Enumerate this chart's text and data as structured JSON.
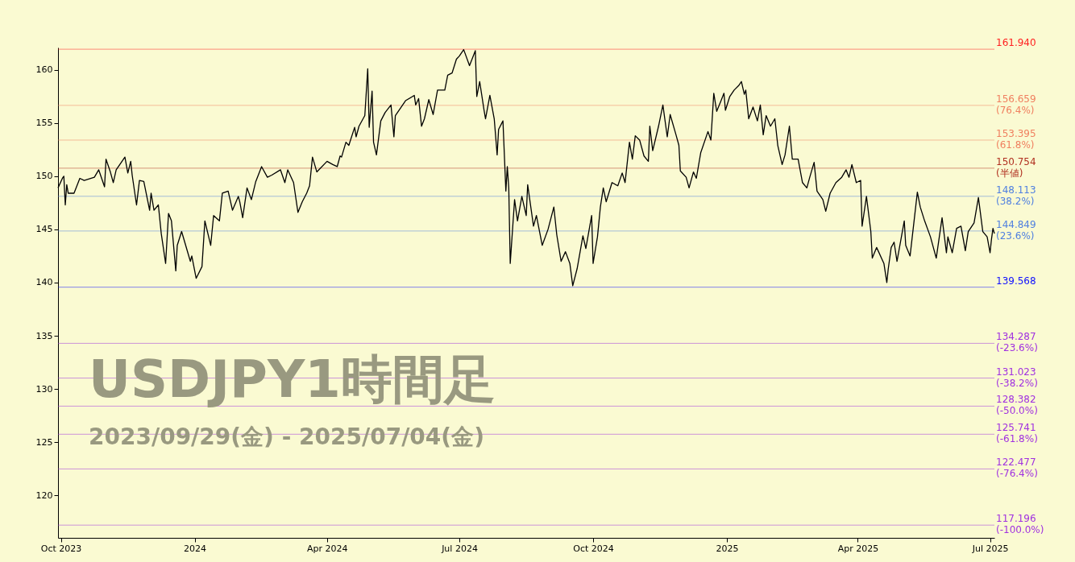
{
  "chart_data": {
    "type": "line",
    "title": "USDJPY1時間足",
    "subtitle": "2023/09/29(金) - 2025/07/04(金)",
    "color": "#000000",
    "x": [
      "2023-09-29",
      "2023-10-02",
      "2023-10-03",
      "2023-10-04",
      "2023-10-05",
      "2023-10-06",
      "2023-10-10",
      "2023-10-14",
      "2023-10-17",
      "2023-10-24",
      "2023-10-27",
      "2023-10-31",
      "2023-11-01",
      "2023-11-04",
      "2023-11-06",
      "2023-11-08",
      "2023-11-14",
      "2023-11-16",
      "2023-11-18",
      "2023-11-19",
      "2023-11-22",
      "2023-11-24",
      "2023-11-27",
      "2023-12-01",
      "2023-12-02",
      "2023-12-04",
      "2023-12-07",
      "2023-12-09",
      "2023-12-12",
      "2023-12-14",
      "2023-12-16",
      "2023-12-19",
      "2023-12-20",
      "2023-12-23",
      "2023-12-29",
      "2023-12-30",
      "2024-01-02",
      "2024-01-06",
      "2024-01-08",
      "2024-01-12",
      "2024-01-14",
      "2024-01-18",
      "2024-01-20",
      "2024-01-24",
      "2024-01-27",
      "2024-01-31",
      "2024-02-01",
      "2024-02-03",
      "2024-02-06",
      "2024-02-09",
      "2024-02-12",
      "2024-02-16",
      "2024-02-20",
      "2024-02-23",
      "2024-02-29",
      "2024-03-03",
      "2024-03-05",
      "2024-03-09",
      "2024-03-12",
      "2024-03-15",
      "2024-03-18",
      "2024-03-20",
      "2024-03-22",
      "2024-03-25",
      "2024-04-01",
      "2024-04-05",
      "2024-04-08",
      "2024-04-10",
      "2024-04-11",
      "2024-04-14",
      "2024-04-16",
      "2024-04-20",
      "2024-04-21",
      "2024-04-23",
      "2024-04-27",
      "2024-04-29",
      "2024-04-30",
      "2024-05-02",
      "2024-05-03",
      "2024-05-05",
      "2024-05-08",
      "2024-05-11",
      "2024-05-15",
      "2024-05-17",
      "2024-05-18",
      "2024-05-25",
      "2024-05-31",
      "2024-06-01",
      "2024-06-03",
      "2024-06-05",
      "2024-06-07",
      "2024-06-10",
      "2024-06-13",
      "2024-06-16",
      "2024-06-21",
      "2024-06-23",
      "2024-06-26",
      "2024-06-29",
      "2024-07-01",
      "2024-07-04",
      "2024-07-08",
      "2024-07-12",
      "2024-07-13",
      "2024-07-15",
      "2024-07-18",
      "2024-07-19",
      "2024-07-22",
      "2024-07-25",
      "2024-07-27",
      "2024-07-28",
      "2024-07-31",
      "2024-08-02",
      "2024-08-03",
      "2024-08-04",
      "2024-08-05",
      "2024-08-08",
      "2024-08-10",
      "2024-08-13",
      "2024-08-16",
      "2024-08-17",
      "2024-08-21",
      "2024-08-23",
      "2024-08-27",
      "2024-08-31",
      "2024-09-04",
      "2024-09-06",
      "2024-09-09",
      "2024-09-12",
      "2024-09-15",
      "2024-09-17",
      "2024-09-20",
      "2024-09-24",
      "2024-09-26",
      "2024-09-30",
      "2024-10-01",
      "2024-10-04",
      "2024-10-06",
      "2024-10-08",
      "2024-10-10",
      "2024-10-14",
      "2024-10-18",
      "2024-10-21",
      "2024-10-23",
      "2024-10-26",
      "2024-10-28",
      "2024-10-30",
      "2024-11-02",
      "2024-11-05",
      "2024-11-08",
      "2024-11-09",
      "2024-11-11",
      "2024-11-15",
      "2024-11-18",
      "2024-11-21",
      "2024-11-23",
      "2024-11-27",
      "2024-11-29",
      "2024-11-30",
      "2024-12-04",
      "2024-12-06",
      "2024-12-09",
      "2024-12-11",
      "2024-12-14",
      "2024-12-19",
      "2024-12-21",
      "2024-12-23",
      "2024-12-25",
      "2024-12-28",
      "2024-12-30",
      "2024-12-31",
      "2025-01-03",
      "2025-01-06",
      "2025-01-09",
      "2025-01-11",
      "2025-01-13",
      "2025-01-14",
      "2025-01-16",
      "2025-01-19",
      "2025-01-22",
      "2025-01-24",
      "2025-01-26",
      "2025-01-28",
      "2025-01-31",
      "2025-02-03",
      "2025-02-05",
      "2025-02-08",
      "2025-02-10",
      "2025-02-13",
      "2025-02-15",
      "2025-02-19",
      "2025-02-22",
      "2025-02-25",
      "2025-02-27",
      "2025-03-02",
      "2025-03-04",
      "2025-03-08",
      "2025-03-10",
      "2025-03-13",
      "2025-03-17",
      "2025-03-21",
      "2025-03-24",
      "2025-03-26",
      "2025-03-28",
      "2025-03-31",
      "2025-04-03",
      "2025-04-04",
      "2025-04-07",
      "2025-04-10",
      "2025-04-11",
      "2025-04-14",
      "2025-04-19",
      "2025-04-21",
      "2025-04-22",
      "2025-04-24",
      "2025-04-26",
      "2025-04-28",
      "2025-05-03",
      "2025-05-04",
      "2025-05-07",
      "2025-05-10",
      "2025-05-12",
      "2025-05-14",
      "2025-05-17",
      "2025-05-21",
      "2025-05-25",
      "2025-05-29",
      "2025-06-01",
      "2025-06-02",
      "2025-06-05",
      "2025-06-08",
      "2025-06-11",
      "2025-06-14",
      "2025-06-16",
      "2025-06-20",
      "2025-06-23",
      "2025-06-26",
      "2025-06-29",
      "2025-07-01",
      "2025-07-02",
      "2025-07-03",
      "2025-07-04"
    ],
    "values": [
      148.9,
      149.8,
      150.0,
      147.3,
      149.2,
      148.4,
      148.4,
      149.8,
      149.6,
      149.9,
      150.6,
      149.0,
      151.6,
      150.4,
      149.4,
      150.6,
      151.8,
      150.3,
      151.4,
      150.1,
      147.3,
      149.6,
      149.5,
      146.8,
      148.4,
      146.8,
      147.3,
      144.6,
      141.8,
      146.5,
      145.8,
      141.1,
      143.5,
      144.8,
      142.0,
      142.5,
      140.4,
      141.5,
      145.8,
      143.5,
      146.3,
      145.8,
      148.4,
      148.6,
      146.8,
      148.1,
      147.6,
      146.1,
      148.9,
      147.8,
      149.5,
      150.9,
      149.9,
      150.1,
      150.6,
      149.4,
      150.6,
      149.4,
      146.6,
      147.6,
      148.4,
      149.1,
      151.8,
      150.4,
      151.4,
      151.1,
      150.9,
      151.9,
      151.8,
      153.2,
      152.9,
      154.6,
      153.7,
      154.7,
      155.7,
      160.1,
      154.6,
      158.0,
      153.2,
      152.0,
      155.2,
      156.0,
      156.7,
      153.7,
      155.7,
      157.1,
      157.6,
      156.7,
      157.3,
      154.7,
      155.4,
      157.2,
      155.8,
      158.1,
      158.1,
      159.5,
      159.7,
      161.0,
      161.3,
      161.9,
      160.4,
      161.8,
      157.5,
      158.9,
      156.2,
      155.4,
      157.6,
      155.4,
      152.0,
      154.4,
      155.2,
      148.6,
      150.9,
      148.9,
      141.8,
      147.8,
      145.8,
      148.1,
      146.3,
      149.2,
      145.3,
      146.3,
      143.5,
      145.0,
      147.1,
      144.5,
      142.0,
      142.9,
      141.8,
      139.7,
      141.3,
      144.4,
      143.2,
      146.3,
      141.8,
      144.3,
      147.1,
      148.9,
      147.6,
      149.4,
      149.1,
      150.3,
      149.4,
      153.2,
      151.6,
      153.8,
      153.4,
      151.9,
      151.4,
      154.7,
      152.4,
      154.7,
      156.7,
      153.7,
      155.8,
      153.9,
      152.9,
      150.5,
      149.9,
      148.9,
      150.4,
      149.8,
      152.2,
      154.2,
      153.4,
      157.8,
      156.1,
      157.1,
      157.8,
      156.2,
      157.5,
      158.1,
      158.5,
      158.9,
      157.7,
      158.1,
      155.4,
      156.5,
      155.2,
      156.7,
      153.9,
      155.7,
      154.7,
      155.4,
      152.9,
      151.1,
      152.0,
      154.7,
      151.6,
      151.6,
      149.4,
      148.9,
      149.9,
      151.3,
      148.6,
      147.8,
      146.7,
      148.4,
      149.4,
      149.9,
      150.6,
      149.9,
      151.1,
      149.4,
      149.6,
      145.3,
      148.1,
      144.8,
      142.3,
      143.3,
      141.8,
      140.0,
      141.3,
      143.3,
      143.8,
      142.0,
      145.8,
      143.5,
      142.5,
      146.1,
      148.5,
      147.1,
      145.8,
      144.3,
      142.3,
      146.1,
      142.8,
      144.3,
      142.8,
      145.1,
      145.3,
      143.0,
      144.8,
      145.6,
      148.0,
      144.8,
      144.3,
      142.8,
      144.1,
      145.1,
      144.6
    ],
    "xlim": [
      "2023-09-29",
      "2025-07-04"
    ],
    "xticks": [
      {
        "value": "2023-10-01",
        "label": "Oct 2023"
      },
      {
        "value": "2024-01-01",
        "label": "2024"
      },
      {
        "value": "2024-04-01",
        "label": "Apr 2024"
      },
      {
        "value": "2024-07-01",
        "label": "Jul 2024"
      },
      {
        "value": "2024-10-01",
        "label": "Oct 2024"
      },
      {
        "value": "2025-01-01",
        "label": "2025"
      },
      {
        "value": "2025-04-01",
        "label": "Apr 2025"
      },
      {
        "value": "2025-07-01",
        "label": "Jul 2025"
      }
    ],
    "ylim": [
      116,
      162.1
    ],
    "yticks": [
      120,
      125,
      130,
      135,
      140,
      145,
      150,
      155,
      160
    ],
    "ref_lines": [
      {
        "axis": "y",
        "value": 161.94,
        "label": "161.940",
        "color": "#ff2020"
      },
      {
        "axis": "y",
        "value": 156.659,
        "label": "156.659\n(76.4%)",
        "color": "#f08060"
      },
      {
        "axis": "y",
        "value": 153.395,
        "label": "153.395\n(61.8%)",
        "color": "#f08060"
      },
      {
        "axis": "y",
        "value": 150.754,
        "label": "150.754\n(半値)",
        "color": "#b03020"
      },
      {
        "axis": "y",
        "value": 148.113,
        "label": "148.113\n(38.2%)",
        "color": "#5080e0"
      },
      {
        "axis": "y",
        "value": 144.849,
        "label": "144.849\n(23.6%)",
        "color": "#5080e0"
      },
      {
        "axis": "y",
        "value": 139.568,
        "label": "139.568",
        "color": "#1010ff"
      },
      {
        "axis": "y",
        "value": 134.287,
        "label": "134.287\n(-23.6%)",
        "color": "#a030e0"
      },
      {
        "axis": "y",
        "value": 131.023,
        "label": "131.023\n(-38.2%)",
        "color": "#a030e0"
      },
      {
        "axis": "y",
        "value": 128.382,
        "label": "128.382\n(-50.0%)",
        "color": "#a030e0"
      },
      {
        "axis": "y",
        "value": 125.741,
        "label": "125.741\n(-61.8%)",
        "color": "#a030e0"
      },
      {
        "axis": "y",
        "value": 122.477,
        "label": "122.477\n(-76.4%)",
        "color": "#a030e0"
      },
      {
        "axis": "y",
        "value": 117.196,
        "label": "117.196\n(-100.0%)",
        "color": "#a030e0"
      }
    ]
  }
}
